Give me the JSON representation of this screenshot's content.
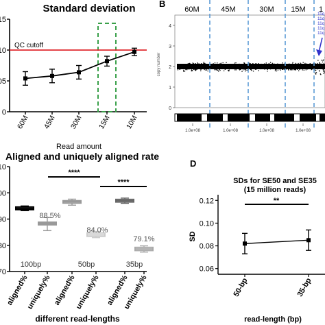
{
  "chart_data": [
    {
      "panel": "",
      "type": "line",
      "title": "Standard deviation",
      "xlabel": "Read amount",
      "ylabel": "",
      "categories": [
        "60M",
        "45M",
        "30M",
        "15M",
        "10M"
      ],
      "values": [
        0.054,
        0.058,
        0.064,
        0.082,
        0.097
      ],
      "errors": [
        0.011,
        0.011,
        0.011,
        0.008,
        0.006
      ],
      "yticks": [
        "0",
        "05",
        "10",
        "15"
      ],
      "ylim": [
        0,
        0.15
      ],
      "reference_line": {
        "label": "QC cutoff",
        "value": 0.1,
        "color": "#e0282e"
      },
      "highlight": {
        "category": "15M",
        "color": "#3aa04a"
      },
      "series_color": "#000000"
    },
    {
      "panel": "B",
      "type": "scatter",
      "title": "",
      "ylabel": "copy number",
      "segment_labels": [
        "60M",
        "45M",
        "30M",
        "15M",
        "1"
      ],
      "yticks": [
        "0",
        "1",
        "2",
        "3",
        "4"
      ],
      "ylim": [
        0,
        4.5
      ],
      "baseline_copy_number": 2,
      "xtick_labels": [
        "1.0e+08",
        "1.0e+08",
        "1.0e+08",
        "1.0e+08"
      ],
      "annotation_lines": [
        "11q",
        "11q",
        "11q",
        "11q",
        "11q"
      ],
      "annotation_color": "#3333cc",
      "divider_color": "#5b9bd5"
    },
    {
      "panel": "",
      "type": "box",
      "title": "Aligned and uniquely aligned rate",
      "xlabel": "different read-lengths",
      "ylabel": "",
      "categories": [
        "aligned%",
        "uniquely%",
        "aligned%",
        "uniquely%",
        "aligned%",
        "uniquely%"
      ],
      "groups": [
        "100bp",
        "50bp",
        "35bp"
      ],
      "yticks": [
        "70",
        "80",
        "90",
        "100",
        "110"
      ],
      "ylim": [
        70,
        110
      ],
      "boxes": [
        {
          "min": 93.2,
          "q1": 93.6,
          "median": 94.1,
          "q3": 94.6,
          "max": 95.0,
          "color": "#000000"
        },
        {
          "min": 85.6,
          "q1": 87.8,
          "median": 88.3,
          "q3": 88.8,
          "max": 90.6,
          "color": "#999999"
        },
        {
          "min": 95.3,
          "q1": 96.1,
          "median": 96.6,
          "q3": 97.0,
          "max": 97.6,
          "color": "#999999"
        },
        {
          "min": 82.9,
          "q1": 83.4,
          "median": 84.0,
          "q3": 84.7,
          "max": 85.3,
          "color": "#cccccc"
        },
        {
          "min": 96.0,
          "q1": 96.5,
          "median": 97.0,
          "q3": 97.5,
          "max": 98.0,
          "color": "#666666"
        },
        {
          "min": 77.4,
          "q1": 78.0,
          "median": 78.6,
          "q3": 79.2,
          "max": 79.8,
          "color": "#aaaaaa"
        }
      ],
      "annotations": [
        "88.5%",
        "84.0%",
        "79.1%"
      ],
      "significance": [
        "****",
        "****"
      ]
    },
    {
      "panel": "D",
      "type": "line",
      "title": "SDs for SE50 and SE35",
      "subtitle": "(15 million reads)",
      "xlabel": "read-length (bp)",
      "ylabel": "SD",
      "categories": [
        "50-bp",
        "35-bp"
      ],
      "values": [
        0.082,
        0.085
      ],
      "errors": [
        0.009,
        0.009
      ],
      "yticks": [
        "0.06",
        "0.08",
        "0.10",
        "0.12"
      ],
      "ylim": [
        0.055,
        0.125
      ],
      "significance": "**"
    }
  ]
}
